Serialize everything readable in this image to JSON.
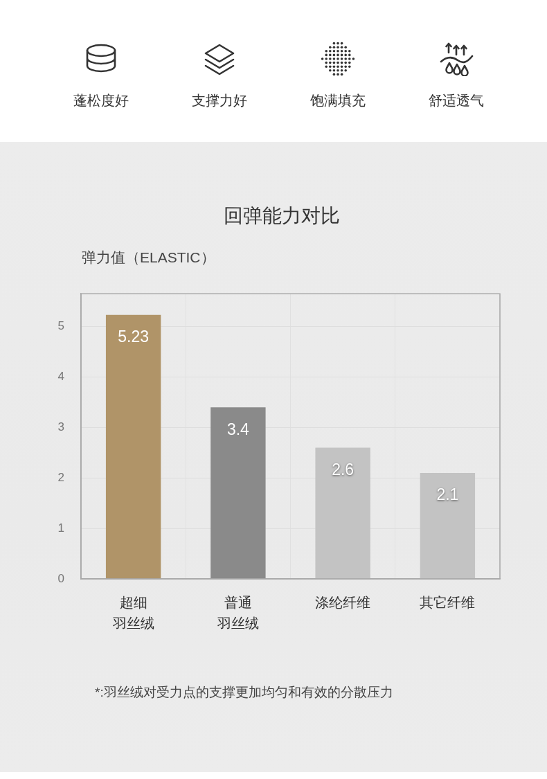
{
  "chart_data": [
    {
      "type": "other",
      "annotations": [
        "蓬松度好",
        "支撑力好",
        "饱满填充",
        "舒适透气"
      ]
    },
    {
      "type": "bar",
      "title": "回弹能力对比",
      "ylabel": "弹力值（ELASTIC）",
      "categories": [
        "超细羽丝绒",
        "普通羽丝绒",
        "涤纶纤维",
        "其它纤维"
      ],
      "values": [
        5.23,
        3.4,
        2.6,
        2.1
      ],
      "colors": [
        "#b09468",
        "#8a8a8a",
        "#c3c3c3",
        "#c3c3c3"
      ],
      "ylim": [
        0,
        5.65
      ],
      "yticks": [
        0,
        1,
        2,
        3,
        4,
        5
      ],
      "grid": true,
      "data_labels": true,
      "annotations": [
        "*:羽丝绒对受力点的支撑更加均匀和有效的分散压力"
      ]
    }
  ]
}
